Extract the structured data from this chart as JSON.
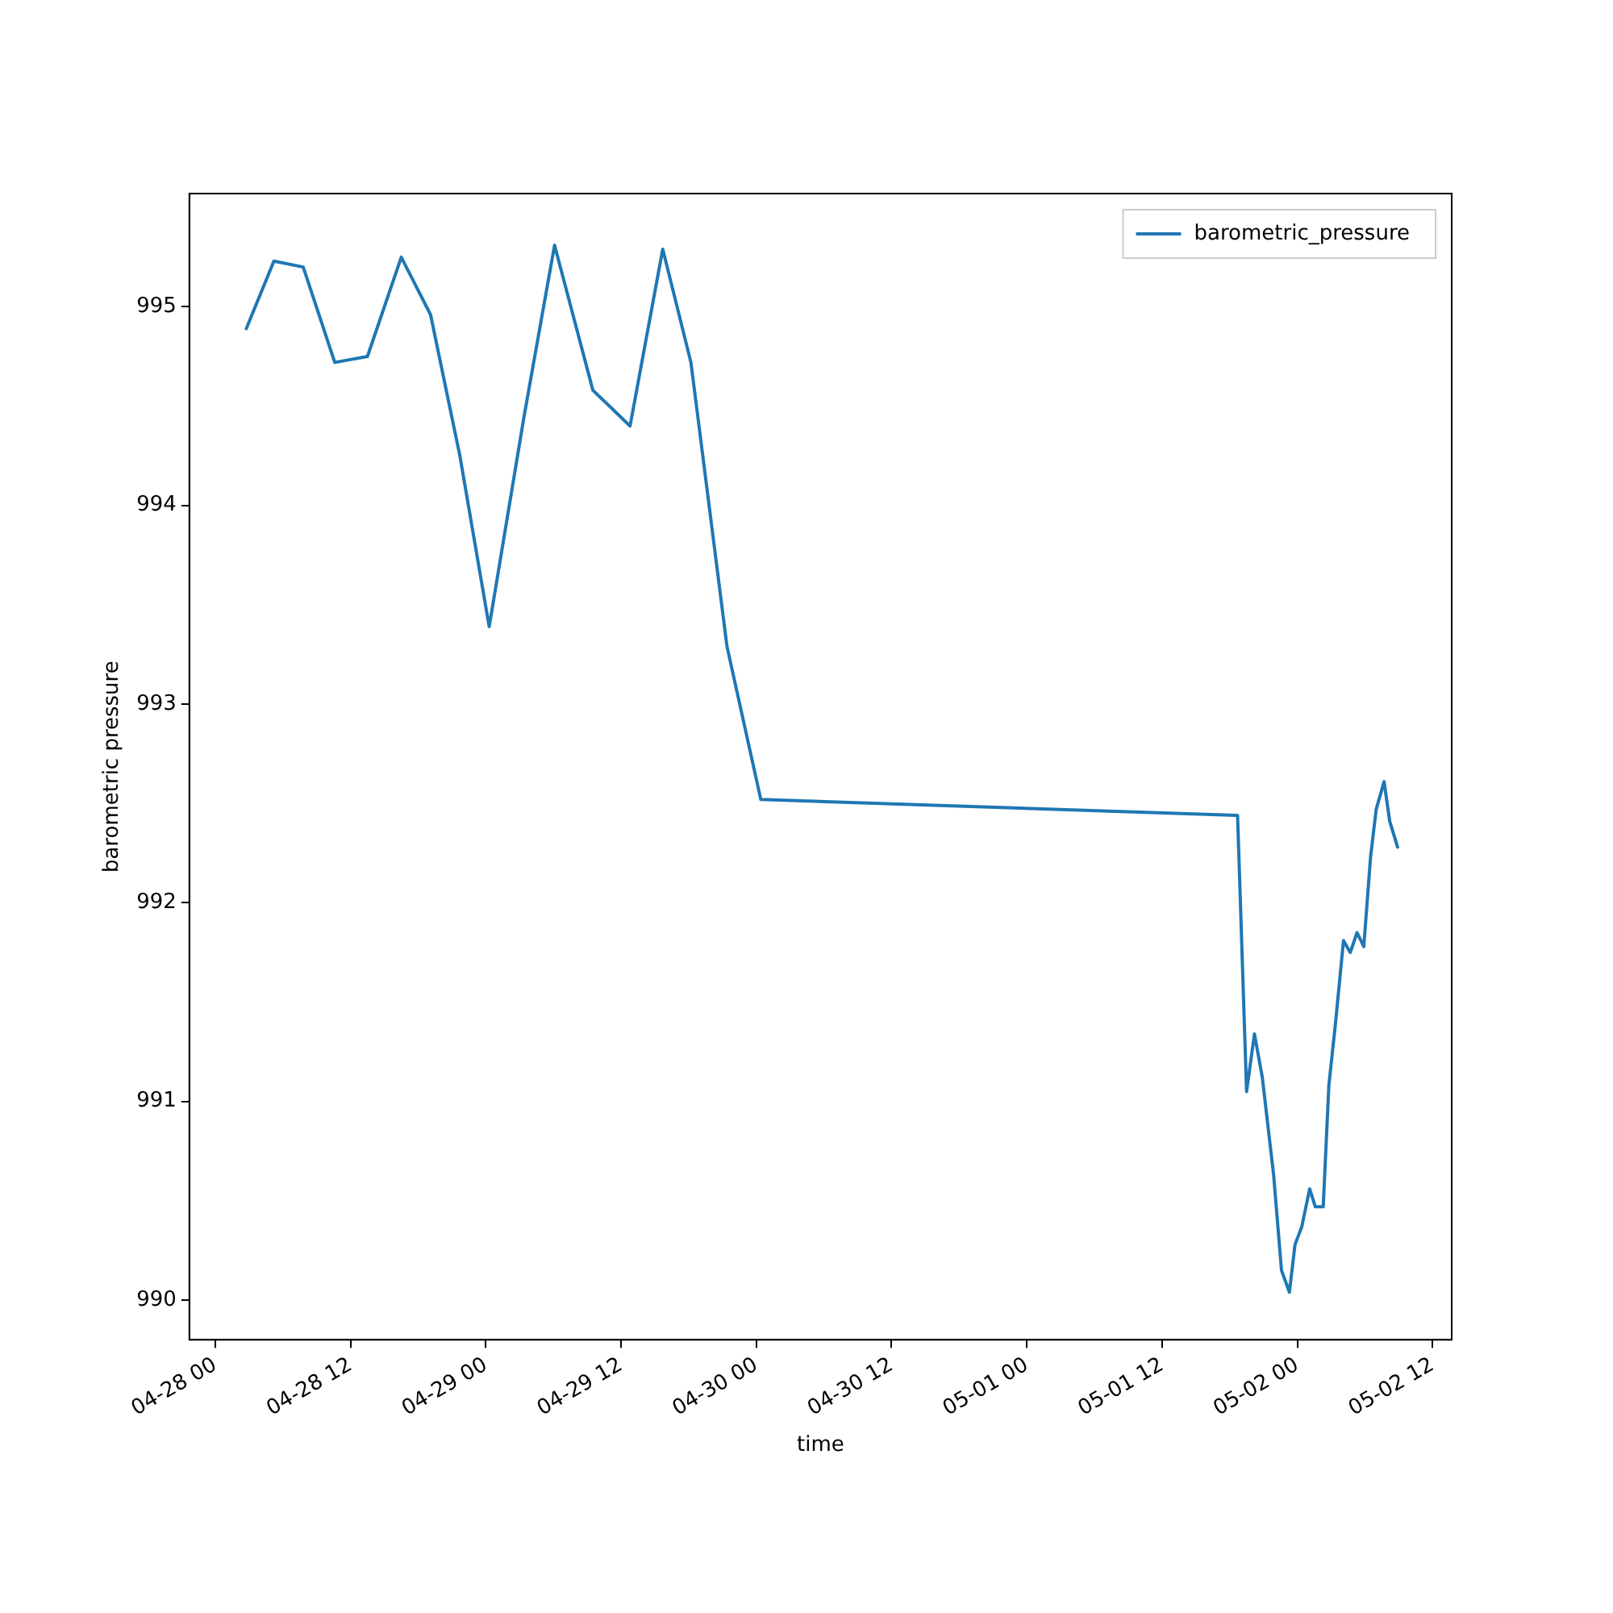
{
  "chart_data": {
    "type": "line",
    "xlabel": "time",
    "ylabel": "barometric pressure",
    "x": [
      "--04-28T02:45",
      "--04-28T05:12",
      "--04-28T07:48",
      "--04-28T10:36",
      "--04-28T13:30",
      "--04-28T16:30",
      "--04-28T19:06",
      "--04-28T21:42",
      "--04-29T00:18",
      "--04-29T03:24",
      "--04-29T06:06",
      "--04-29T09:30",
      "--04-29T12:48",
      "--04-29T15:42",
      "--04-29T18:12",
      "--04-29T21:24",
      "--04-30T00:24",
      "--05-01T18:42",
      "--05-01T19:30",
      "--05-01T20:12",
      "--05-01T20:54",
      "--05-01T21:54",
      "--05-01T22:36",
      "--05-01T23:18",
      "--05-01T23:48",
      "--05-02T00:24",
      "--05-02T01:06",
      "--05-02T01:36",
      "--05-02T02:18",
      "--05-02T02:48",
      "--05-02T03:24",
      "--05-02T04:06",
      "--05-02T04:42",
      "--05-02T05:18",
      "--05-02T05:54",
      "--05-02T06:30",
      "--05-02T07:00",
      "--05-02T07:42",
      "--05-02T08:12",
      "--05-02T08:54"
    ],
    "series": [
      {
        "name": "barometric_pressure",
        "color": "#1f77b4",
        "values": [
          994.89,
          995.23,
          995.2,
          994.72,
          994.75,
          995.25,
          994.96,
          994.25,
          993.39,
          994.45,
          995.31,
          994.58,
          994.4,
          995.29,
          994.72,
          993.29,
          992.52,
          992.44,
          991.05,
          991.34,
          991.12,
          990.63,
          990.15,
          990.04,
          990.28,
          990.37,
          990.56,
          990.47,
          990.47,
          991.08,
          991.4,
          991.81,
          991.75,
          991.85,
          991.78,
          992.23,
          992.47,
          992.61,
          992.41,
          992.28
        ]
      }
    ],
    "xlim": [
      "--04-27T21:42",
      "--05-02T13:42"
    ],
    "ylim": [
      989.8,
      995.57
    ],
    "xticks": [
      {
        "value": "--04-28T00:00",
        "label": "04-28 00"
      },
      {
        "value": "--04-28T12:00",
        "label": "04-28 12"
      },
      {
        "value": "--04-29T00:00",
        "label": "04-29 00"
      },
      {
        "value": "--04-29T12:00",
        "label": "04-29 12"
      },
      {
        "value": "--04-30T00:00",
        "label": "04-30 00"
      },
      {
        "value": "--04-30T12:00",
        "label": "04-30 12"
      },
      {
        "value": "--05-01T00:00",
        "label": "05-01 00"
      },
      {
        "value": "--05-01T12:00",
        "label": "05-01 12"
      },
      {
        "value": "--05-02T00:00",
        "label": "05-02 00"
      },
      {
        "value": "--05-02T12:00",
        "label": "05-02 12"
      }
    ],
    "yticks": [
      990,
      991,
      992,
      993,
      994,
      995
    ],
    "grid": false,
    "legend": "top right",
    "marker": "none",
    "line_style": "solid"
  }
}
